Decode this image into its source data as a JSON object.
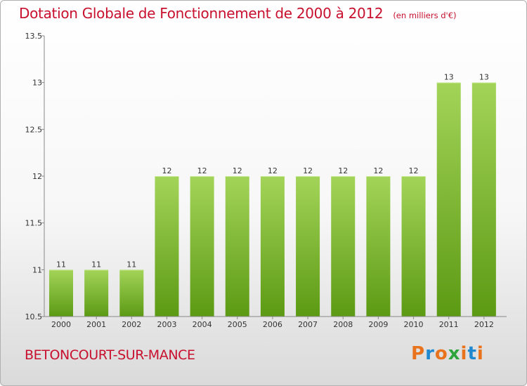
{
  "header": {
    "title": "Dotation Globale de Fonctionnement de 2000 à 2012",
    "subtitle": "(en milliers d'€)"
  },
  "footer": {
    "city": "BETONCOURT-SUR-MANCE",
    "brand": "Proxiti",
    "brand_colors": [
      "#e8731c",
      "#1e88d0",
      "#e8731c",
      "#2ea43c",
      "#e8731c",
      "#1e88d0",
      "#e8731c"
    ]
  },
  "colors": {
    "title": "#c8102e",
    "bar_light": "#a3d459",
    "bar_dark": "#5c9a13",
    "axis": "#888888"
  },
  "chart_data": {
    "type": "bar",
    "title": "Dotation Globale de Fonctionnement de 2000 à 2012",
    "subtitle": "(en milliers d'€)",
    "xlabel": "",
    "ylabel": "",
    "categories": [
      "2000",
      "2001",
      "2002",
      "2003",
      "2004",
      "2005",
      "2006",
      "2007",
      "2008",
      "2009",
      "2010",
      "2011",
      "2012"
    ],
    "values": [
      11,
      11,
      11,
      12,
      12,
      12,
      12,
      12,
      12,
      12,
      12,
      13,
      13
    ],
    "data_labels": [
      "11",
      "11",
      "11",
      "12",
      "12",
      "12",
      "12",
      "12",
      "12",
      "12",
      "12",
      "13",
      "13"
    ],
    "ylim": [
      10.5,
      13.5
    ],
    "yticks": [
      10.5,
      11,
      11.5,
      12,
      12.5,
      13,
      13.5
    ],
    "ytick_labels": [
      "10.5",
      "11",
      "11.5",
      "12",
      "12.5",
      "13",
      "13.5"
    ],
    "grid": false,
    "legend": "none"
  }
}
